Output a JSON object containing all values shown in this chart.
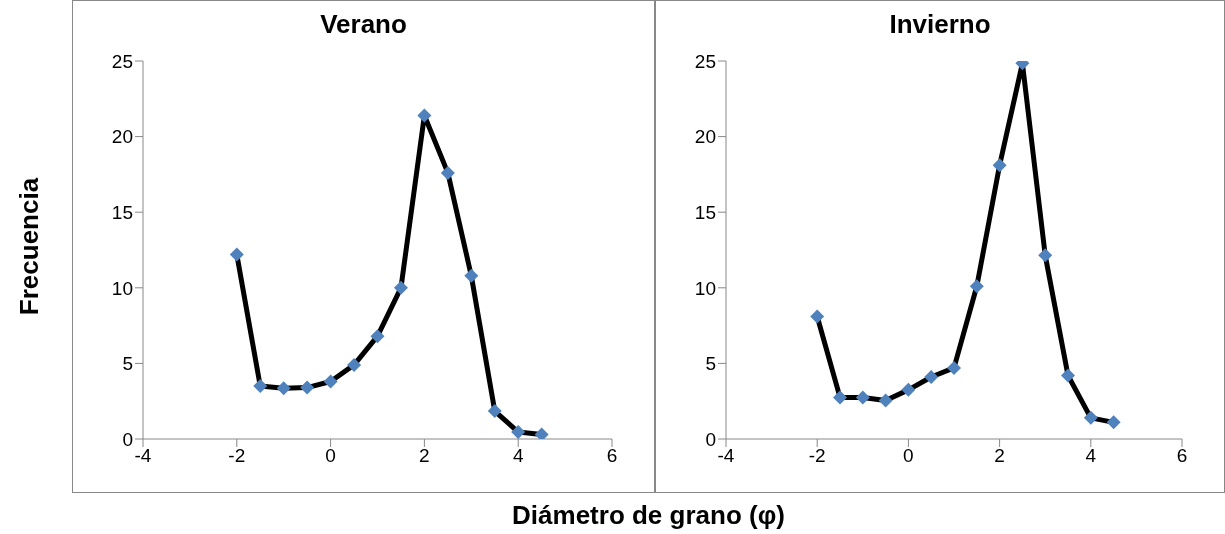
{
  "chart_data": [
    {
      "type": "line",
      "title": "Verano",
      "xlabel": "Diámetro de grano (φ)",
      "ylabel": "Frecuencia",
      "x": [
        -2,
        -1.5,
        -1,
        -0.5,
        0,
        0.5,
        1,
        1.5,
        2,
        2.5,
        3,
        3.5,
        4,
        4.5
      ],
      "series": [
        {
          "color": "#000000",
          "colors": [
            "#4f81bd",
            "#4f81bd",
            "#4f81bd",
            "#4f81bd",
            "#4f81bd",
            "#4f81bd",
            "#4f81bd",
            "#4f81bd",
            "#4f81bd",
            "#4f81bd",
            "#4f81bd",
            "#4f81bd",
            "#4f81bd",
            "#4f81bd"
          ],
          "values": [
            12.2,
            3.5,
            3.35,
            3.4,
            3.8,
            4.9,
            6.8,
            10,
            21.4,
            17.6,
            10.8,
            1.85,
            0.46,
            0.3
          ]
        }
      ],
      "xlim": [
        -4,
        6
      ],
      "xticks": [
        -4,
        -2,
        0,
        2,
        4,
        6
      ],
      "ylim": [
        0,
        25
      ],
      "yticks": [
        0,
        5,
        10,
        15,
        20,
        25
      ],
      "grid": false,
      "legend": false,
      "marker": "diamond",
      "line_style": "solid"
    },
    {
      "type": "line",
      "title": "Invierno",
      "x": [
        -2,
        -1.5,
        -1,
        -0.5,
        0,
        0.5,
        1,
        1.5,
        2,
        2.5,
        3,
        3.5,
        4,
        4.5
      ],
      "series": [
        {
          "color": "#000000",
          "colors": [
            "#4f81bd",
            "#4f81bd",
            "#4f81bd",
            "#4f81bd",
            "#4f81bd",
            "#4f81bd",
            "#4f81bd",
            "#4f81bd",
            "#4f81bd",
            "#4f81bd",
            "#4f81bd",
            "#4f81bd",
            "#4f81bd",
            "#4f81bd"
          ],
          "values": [
            8.1,
            2.75,
            2.75,
            2.55,
            3.25,
            4.1,
            4.7,
            10.1,
            18.1,
            24.85,
            12.15,
            4.2,
            1.4,
            1.1
          ]
        }
      ],
      "xlim": [
        -4,
        6
      ],
      "xticks": [
        -4,
        -2,
        0,
        2,
        4,
        6
      ],
      "ylim": [
        0,
        25
      ],
      "yticks": [
        0,
        5,
        10,
        15,
        20,
        25
      ],
      "grid": false,
      "legend": false,
      "marker": "diamond",
      "line_style": "solid"
    }
  ]
}
